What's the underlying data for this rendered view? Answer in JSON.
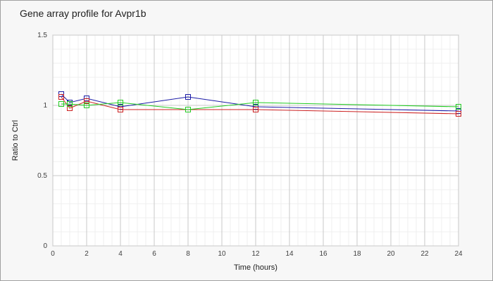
{
  "chart_data": {
    "type": "line",
    "title": "Gene array profile for Avpr1b",
    "xlabel": "Time (hours)",
    "ylabel": "Ratio to Ctrl",
    "xlim": [
      0,
      24
    ],
    "ylim": [
      0,
      1.5
    ],
    "x_ticks": [
      0,
      2,
      4,
      6,
      8,
      10,
      12,
      14,
      16,
      18,
      20,
      22,
      24
    ],
    "y_ticks": [
      0,
      0.5,
      1,
      1.5
    ],
    "y_tick_labels": [
      "0",
      "0.5",
      "1",
      "1.5"
    ],
    "grid": true,
    "x": [
      0.5,
      1,
      2,
      4,
      8,
      12,
      24
    ],
    "series": [
      {
        "color": "#1a1aa6",
        "values": [
          1.08,
          1.02,
          1.05,
          0.99,
          1.06,
          0.99,
          0.96
        ]
      },
      {
        "color": "#cc2020",
        "values": [
          1.06,
          0.98,
          1.03,
          0.97,
          0.97,
          0.97,
          0.94
        ]
      },
      {
        "color": "#22cc22",
        "values": [
          1.01,
          1.01,
          1.0,
          1.02,
          0.97,
          1.02,
          0.99
        ]
      }
    ]
  }
}
